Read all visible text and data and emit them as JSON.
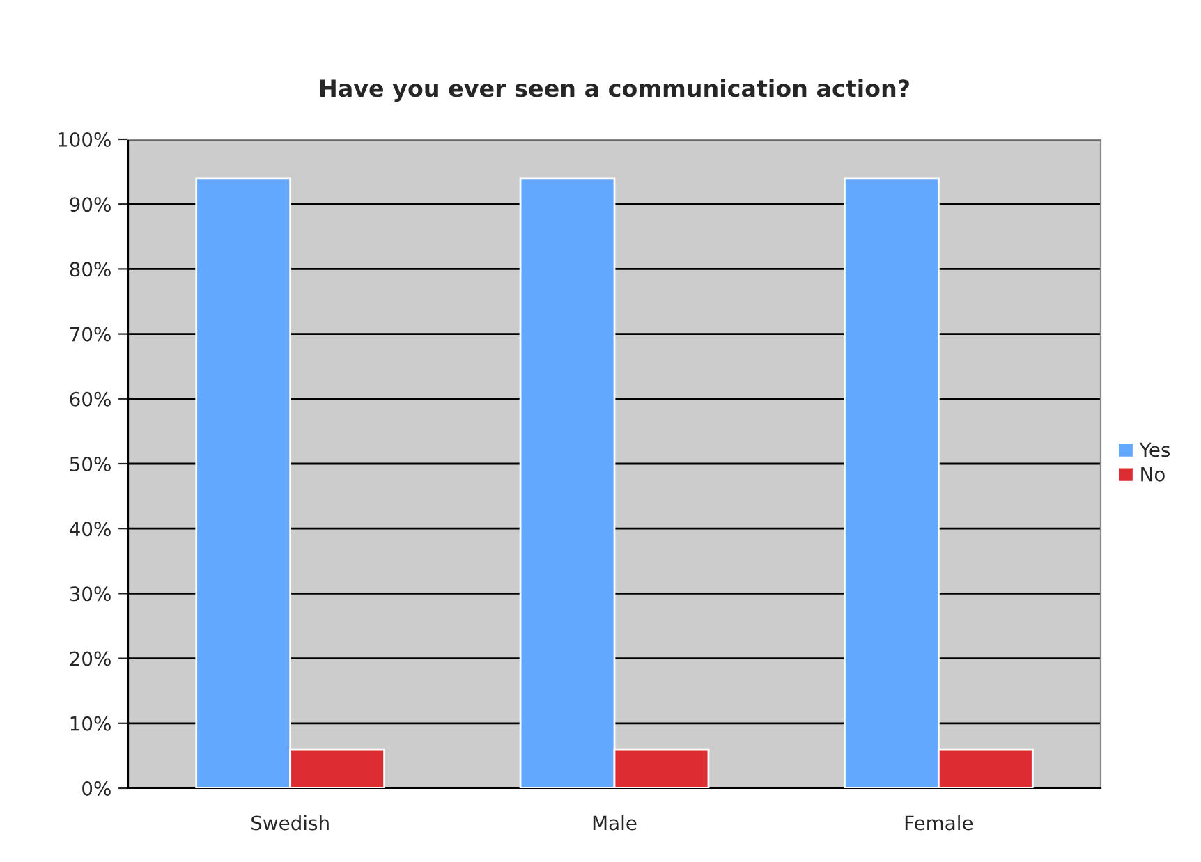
{
  "chart_data": {
    "type": "bar",
    "title": "Have you ever seen a communication action?",
    "categories": [
      "Swedish",
      "Male",
      "Female"
    ],
    "series": [
      {
        "name": "Yes",
        "color": "#63a8ff",
        "values": [
          94,
          94,
          94
        ]
      },
      {
        "name": "No",
        "color": "#de2c33",
        "values": [
          6,
          6,
          6
        ]
      }
    ],
    "ylim": [
      0,
      100
    ],
    "yticks": [
      {
        "value": 0,
        "label": "0%"
      },
      {
        "value": 10,
        "label": "10%"
      },
      {
        "value": 20,
        "label": "20%"
      },
      {
        "value": 30,
        "label": "30%"
      },
      {
        "value": 40,
        "label": "40%"
      },
      {
        "value": 50,
        "label": "50%"
      },
      {
        "value": 60,
        "label": "60%"
      },
      {
        "value": 70,
        "label": "70%"
      },
      {
        "value": 80,
        "label": "80%"
      },
      {
        "value": 90,
        "label": "90%"
      },
      {
        "value": 100,
        "label": "100%"
      }
    ],
    "grid": "y",
    "legend": "right"
  }
}
